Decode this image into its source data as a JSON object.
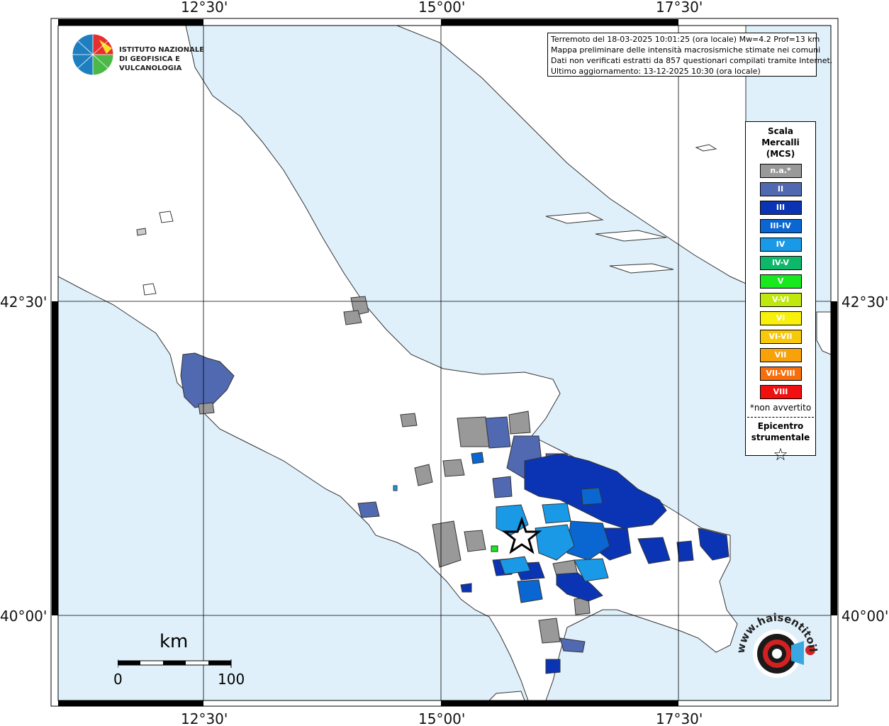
{
  "map": {
    "lon_ticks": [
      "12°30'",
      "15°00'",
      "17°30'"
    ],
    "lat_ticks": [
      "42°30'",
      "40°00'"
    ],
    "colors": {
      "sea": "#dff0fa",
      "land": "#ffffff",
      "frame": "#000000"
    }
  },
  "info": {
    "line1": "Terremoto del 18-03-2025 10:01:25 (ora locale) Mw=4.2 Prof=13 km",
    "line2": "Mappa preliminare delle intensità macrosismiche stimate nei comuni",
    "line3": "Dati non verificati estratti da 857 questionari compilati tramite Internet.",
    "line4": "Ultimo aggiornamento: 13-12-2025 10:30 (ora locale)"
  },
  "legend": {
    "title_l1": "Scala",
    "title_l2": "Mercalli",
    "title_l3": "(MCS)",
    "items": [
      {
        "label": "n.a.*",
        "color": "#999999"
      },
      {
        "label": "II",
        "color": "#5069b0"
      },
      {
        "label": "III",
        "color": "#0a34b4"
      },
      {
        "label": "III-IV",
        "color": "#0a66d0"
      },
      {
        "label": "IV",
        "color": "#1a99e6"
      },
      {
        "label": "IV-V",
        "color": "#0db86a"
      },
      {
        "label": "V",
        "color": "#18e81e"
      },
      {
        "label": "V-VI",
        "color": "#bfe80e"
      },
      {
        "label": "VI",
        "color": "#f8f00a"
      },
      {
        "label": "VI-VII",
        "color": "#f8c80a"
      },
      {
        "label": "VII",
        "color": "#f8a20a"
      },
      {
        "label": "VII-VIII",
        "color": "#f86e0a"
      },
      {
        "label": "VIII",
        "color": "#f01010"
      }
    ],
    "note": "*non avvertito",
    "epi_l1": "Epicentro",
    "epi_l2": "strumentale",
    "star_icon": "☆"
  },
  "logo": {
    "line1": "ISTITUTO NAZIONALE",
    "line2": "DI GEOFISICA E VULCANOLOGIA"
  },
  "scale": {
    "unit": "km",
    "min": "0",
    "max": "100"
  },
  "hst_logo": {
    "text": "www.haisentitoilterremoto.it"
  }
}
